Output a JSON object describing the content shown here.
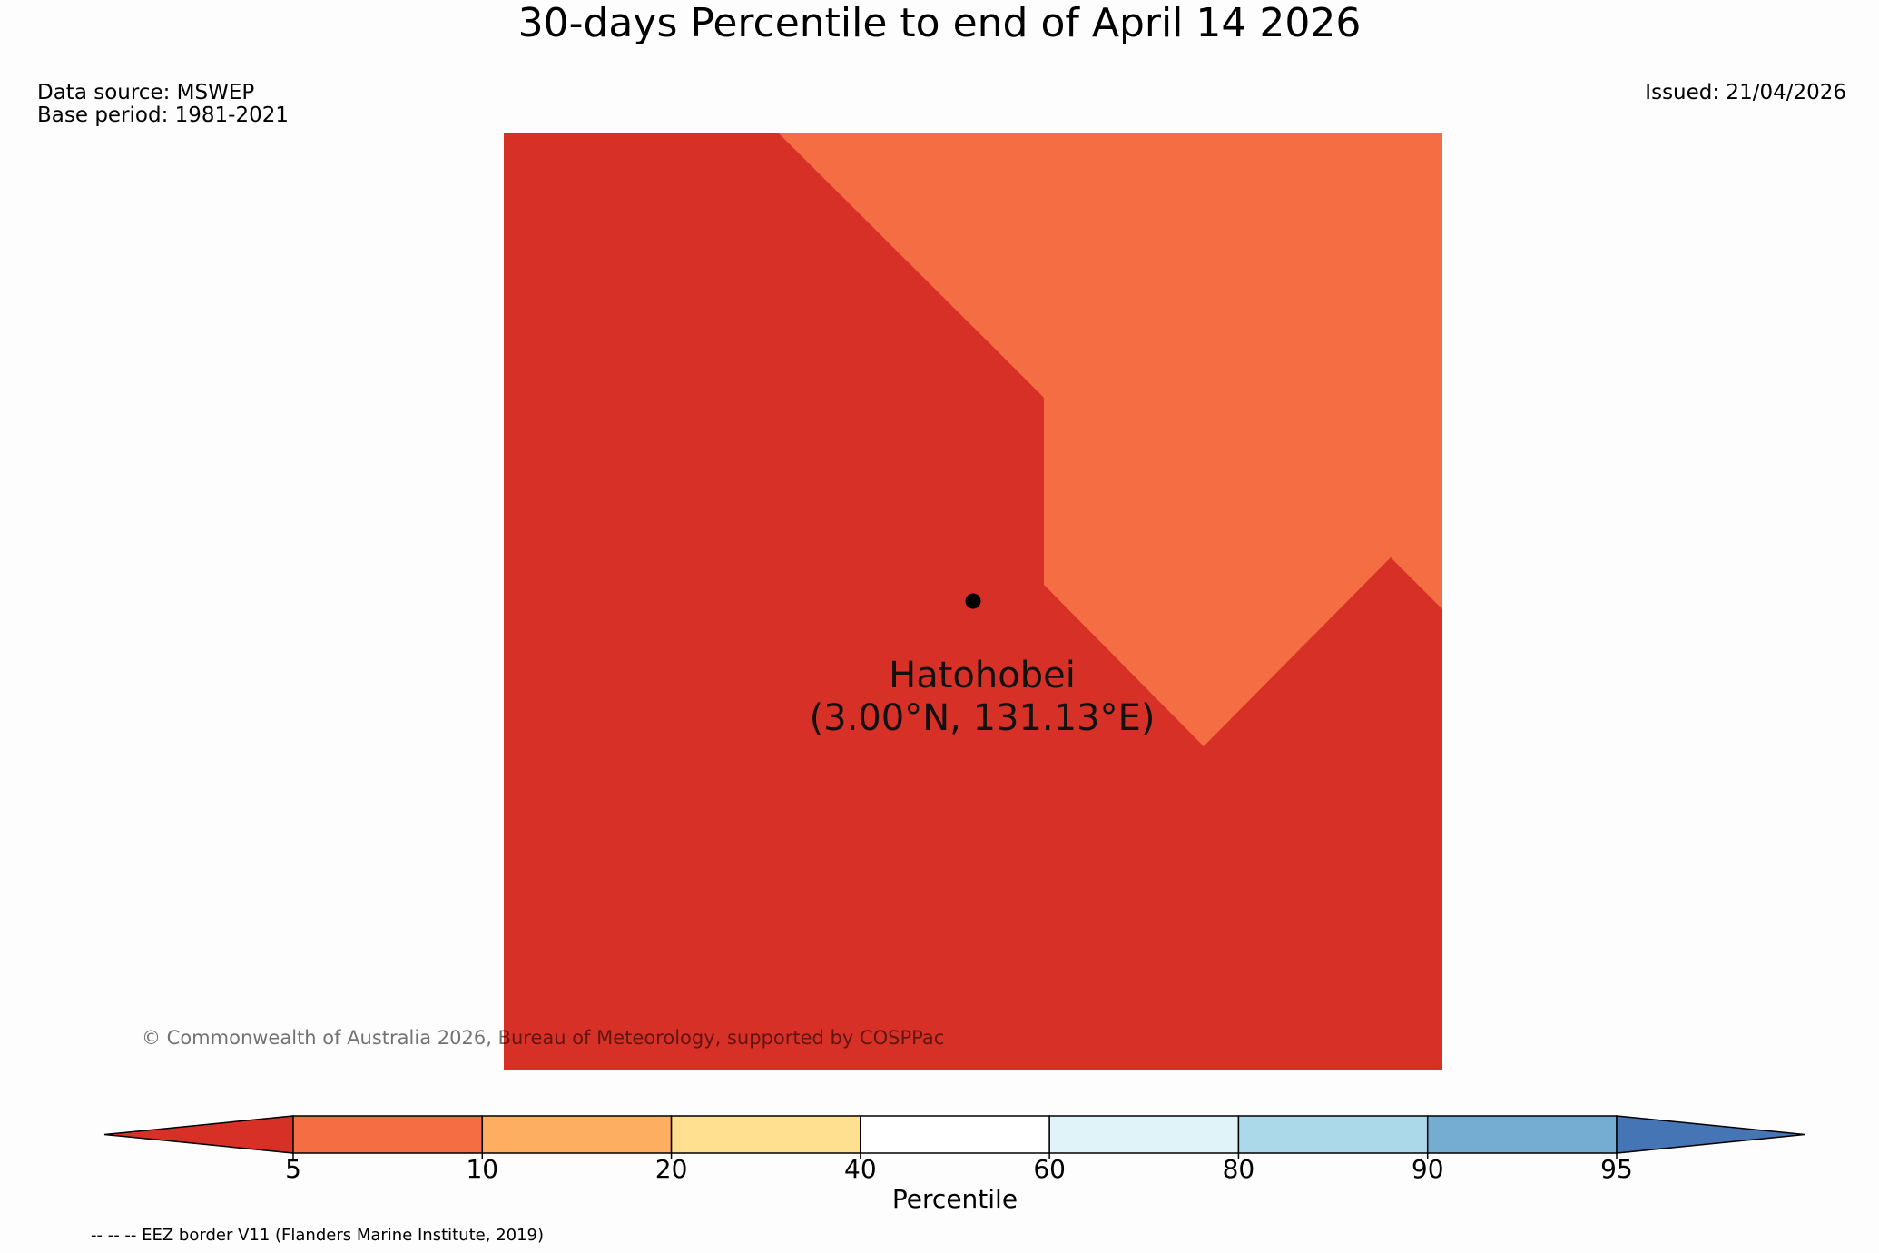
{
  "title": "30-days Percentile to end of April 14 2026",
  "data_source": "Data source: MSWEP",
  "base_period": "Base period: 1981-2021",
  "issued": "Issued: 21/04/2026",
  "station": {
    "name": "Hatohobei",
    "coords": "(3.00°N, 131.13°E)"
  },
  "copyright": "© Commonwealth of Australia 2026, Bureau of Meteorology, supported by COSPPac",
  "map_regions": [
    {
      "category": "< 5",
      "color": "#d73027"
    },
    {
      "category": "5-10",
      "color": "#f46d43"
    }
  ],
  "colorbar": {
    "label": "Percentile",
    "ticks": [
      "5",
      "10",
      "20",
      "40",
      "60",
      "80",
      "90",
      "95"
    ],
    "colors": [
      "#d73027",
      "#f46d43",
      "#fdae61",
      "#fee090",
      "#ffffff",
      "#e0f3f8",
      "#abd9e9",
      "#74add1",
      "#4575b4"
    ]
  },
  "footnote": "-- -- -- EEZ border V11 (Flanders Marine Institute, 2019)"
}
